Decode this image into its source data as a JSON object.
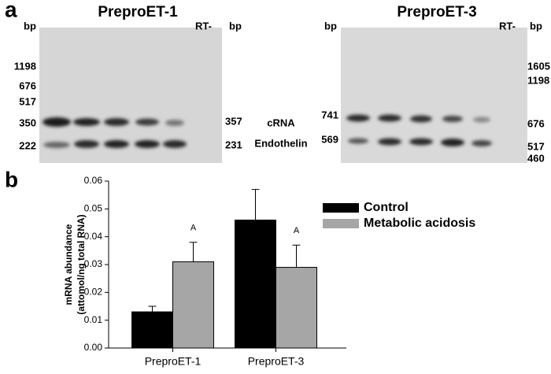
{
  "panel_a": {
    "label": "a",
    "center_labels": [
      "cRNA",
      "Endothelin"
    ],
    "gels": [
      {
        "title": "PreproET-1",
        "left_unit": "bp",
        "rt_label": "RT-",
        "right_unit": "bp",
        "left_markers": [
          1198,
          676,
          517,
          350,
          222
        ],
        "right_markers": [
          357,
          231
        ]
      },
      {
        "title": "PreproET-3",
        "left_unit": "bp",
        "rt_label": "RT-",
        "right_unit": "bp",
        "left_markers": [
          741,
          569
        ],
        "right_markers": [
          1605,
          1198,
          676,
          517,
          460
        ]
      }
    ]
  },
  "chart_data": {
    "type": "bar",
    "panel_label": "b",
    "ylabel": [
      "mRNA  abundance",
      "(attomol/ng total RNA)"
    ],
    "categories": [
      "PreproET-1",
      "PreproET-3"
    ],
    "series": [
      {
        "name": "Control",
        "color": "#000000",
        "values": [
          0.013,
          0.046
        ],
        "errors": [
          0.002,
          0.011
        ]
      },
      {
        "name": "Metabolic acidosis",
        "color": "#a6a6a6",
        "values": [
          0.031,
          0.029
        ],
        "errors": [
          0.007,
          0.008
        ],
        "annotations": [
          "A",
          "A"
        ]
      }
    ],
    "ylim": [
      0,
      0.06
    ],
    "yticks": [
      {
        "value": 0,
        "label": "0.00"
      },
      0.01,
      0.02,
      0.03,
      0.04,
      0.05,
      0.06
    ]
  }
}
